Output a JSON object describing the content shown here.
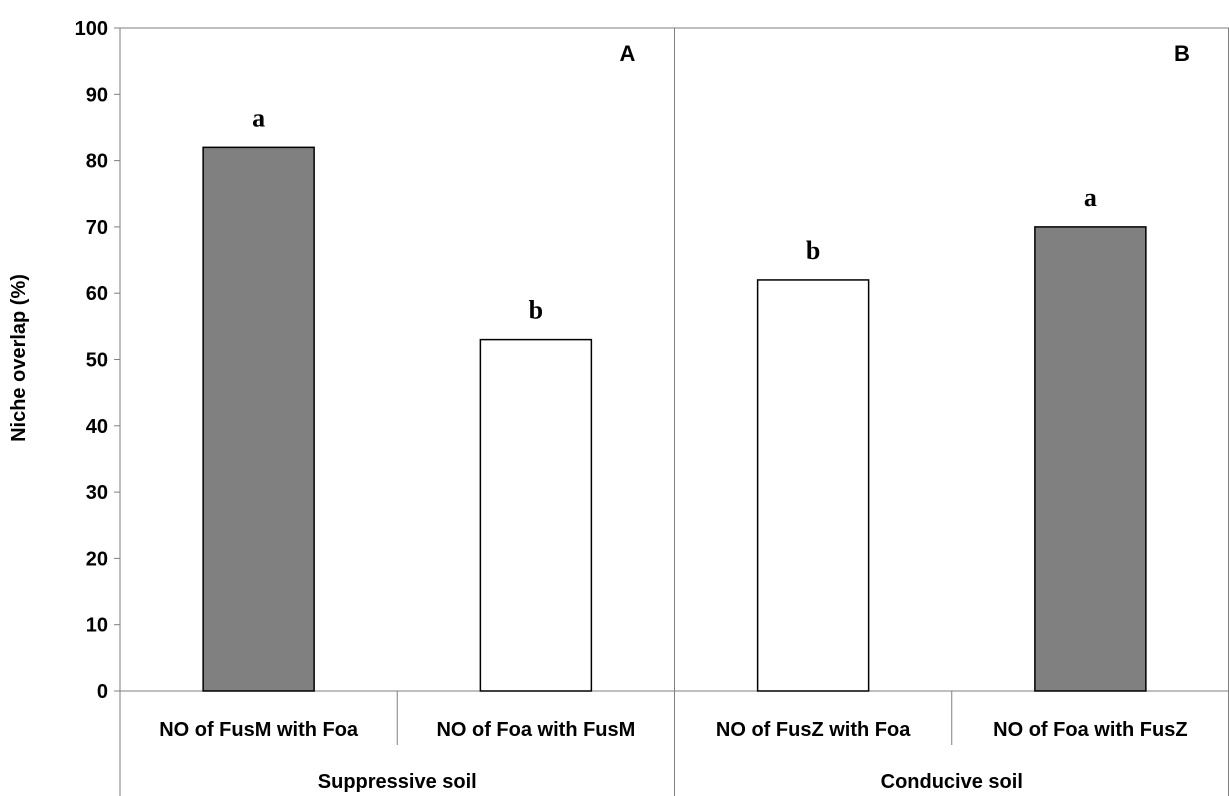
{
  "chart_data": {
    "type": "bar",
    "title": "",
    "ylabel": "Niche overlap (%)",
    "xlabel": "",
    "ylim": [
      0,
      100
    ],
    "yticks": [
      0,
      10,
      20,
      30,
      40,
      50,
      60,
      70,
      80,
      90,
      100
    ],
    "grid": false,
    "categories": [
      "NO of FusM with Foa",
      "NO of Foa with FusM",
      "NO of FusZ with Foa",
      "NO of Foa with FusZ"
    ],
    "values": [
      82,
      53,
      62,
      70
    ],
    "bar_colors": [
      "#808080",
      "#ffffff",
      "#ffffff",
      "#808080"
    ],
    "significance_letters": [
      "a",
      "b",
      "b",
      "a"
    ],
    "groups": [
      {
        "label": "Suppressive soil",
        "panel": "A",
        "categories": [
          0,
          1
        ]
      },
      {
        "label": "Conducive soil",
        "panel": "B",
        "categories": [
          2,
          3
        ]
      }
    ]
  }
}
